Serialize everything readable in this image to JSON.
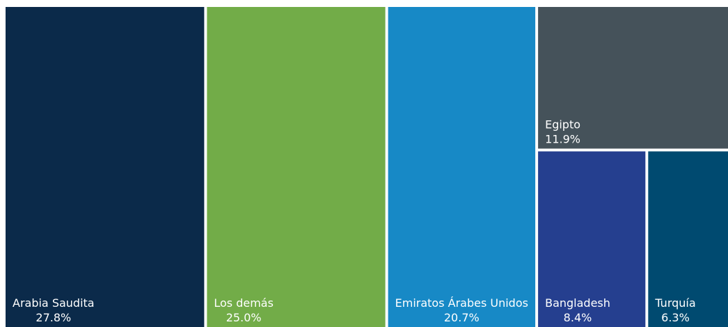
{
  "chart_data": {
    "type": "treemap",
    "categories": [
      "Arabia Saudita",
      "Los demás",
      "Emiratos Árabes Unidos",
      "Egipto",
      "Bangladesh",
      "Turquía"
    ],
    "values": [
      27.8,
      25.0,
      20.7,
      11.9,
      8.4,
      6.3
    ],
    "value_labels": [
      "27.8%",
      "25.0%",
      "20.7%",
      "11.9%",
      "8.4%",
      "6.3%"
    ],
    "colors": [
      "#0b2a4a",
      "#72ac48",
      "#1789c6",
      "#45525a",
      "#253f8f",
      "#004a70"
    ]
  }
}
